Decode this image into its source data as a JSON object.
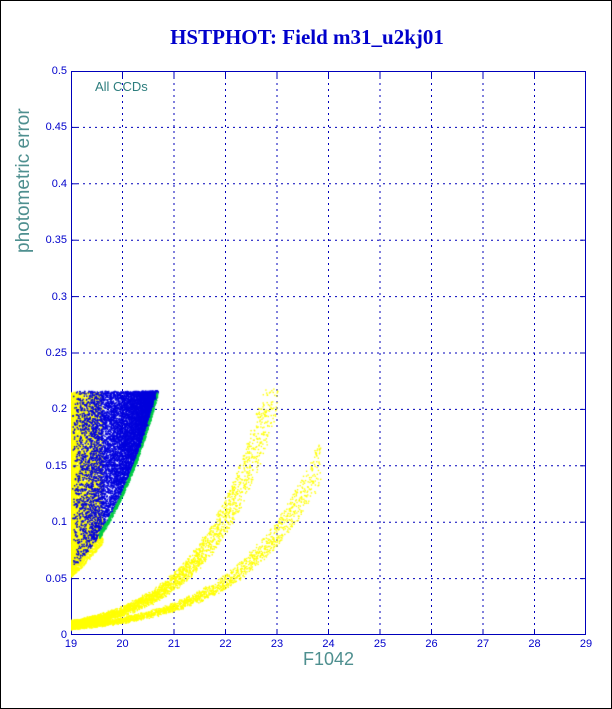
{
  "title": "HSTPHOT: Field m31_u2kj01",
  "chart_data": {
    "type": "scatter",
    "title": "HSTPHOT: Field m31_u2kj01",
    "annotation": "All CCDs",
    "xlabel": "F1042",
    "ylabel": "photometric error",
    "xlim": [
      19,
      29
    ],
    "ylim": [
      0,
      0.5
    ],
    "x_tick_values": [
      19,
      20,
      21,
      22,
      23,
      24,
      25,
      26,
      27,
      28,
      29
    ],
    "x_tick_labels": [
      "19",
      "20",
      "21",
      "22",
      "23",
      "24",
      "25",
      "26",
      "27",
      "28",
      "29"
    ],
    "y_tick_values": [
      0,
      0.05,
      0.1,
      0.15,
      0.2,
      0.25,
      0.3,
      0.35,
      0.4,
      0.45,
      0.5
    ],
    "y_tick_labels": [
      "0",
      "0.05",
      "0.1",
      "0.15",
      "0.2",
      "0.25",
      "0.3",
      "0.35",
      "0.4",
      "0.45",
      "0.5"
    ],
    "grid": "dashed",
    "legend": "none",
    "error_cap": 0.215,
    "seed": 1337,
    "colors": {
      "axis": "#0000cc",
      "grid": "#0000bb",
      "frame": "#0000bb",
      "title": "#0000cc",
      "axis_label": "#4e8f8f",
      "annotation": "#2d7d7d",
      "background": "#ffffff",
      "yellow": "#ffff00",
      "blue": "#0000dd",
      "green": "#00cc44"
    },
    "series": [
      {
        "name": "yellow-dense-blob",
        "description": "Dense yellow cloud at left, 19<F1042<19.6, errors rising from ~0.05 to cap 0.215",
        "kind": "blob",
        "color": "#ffff00",
        "count": 6500,
        "size": 1.5,
        "x_min": 19.0,
        "x_max": 19.62,
        "x_skew": 1.7,
        "a": 0.051,
        "b": 0.75,
        "y_top": 0.215
      },
      {
        "name": "blue-dense-blob",
        "description": "Dense blue cloud 19.1<F1042<20.7, lower edge ~0.057*exp(0.79*(m-19)), flat top at 0.215",
        "kind": "blob",
        "color": "#0000dd",
        "count": 9000,
        "size": 1.5,
        "x_min": 19.03,
        "x_max": 20.68,
        "x_skew": 0.62,
        "a": 0.057,
        "b": 0.79,
        "y_top": 0.216
      },
      {
        "name": "green-boundary-fringe",
        "description": "Thin green fringe along lower-right edge of blue cloud",
        "kind": "edge",
        "color": "#00cc44",
        "count": 700,
        "size": 1.4,
        "x_min": 19.55,
        "x_max": 20.68,
        "a": 0.0565,
        "b": 0.79,
        "jitter": 0.005
      },
      {
        "name": "yellow-error-curve-steep",
        "description": "Yellow error-vs-magnitude stream ~0.0095*exp(0.80*(m-19)), reaches cap near m=23",
        "kind": "band",
        "color": "#ffff00",
        "count": 4200,
        "size": 1.4,
        "x_min": 19.0,
        "x_max": 23.05,
        "x_skew": 2.3,
        "a": 0.0095,
        "b": 0.8,
        "spread": 0.3,
        "jitter": 0.004,
        "y_top": 0.218
      },
      {
        "name": "yellow-error-curve-shallow",
        "description": "Shallower yellow stream ~0.0068*exp(0.645*(m-19)), extends to m~23.8 at err~0.15",
        "kind": "band",
        "color": "#ffff00",
        "count": 2800,
        "size": 1.4,
        "x_min": 19.0,
        "x_max": 23.85,
        "x_skew": 2.0,
        "a": 0.0068,
        "b": 0.645,
        "spread": 0.26,
        "jitter": 0.003,
        "y_top": 0.218
      }
    ]
  }
}
